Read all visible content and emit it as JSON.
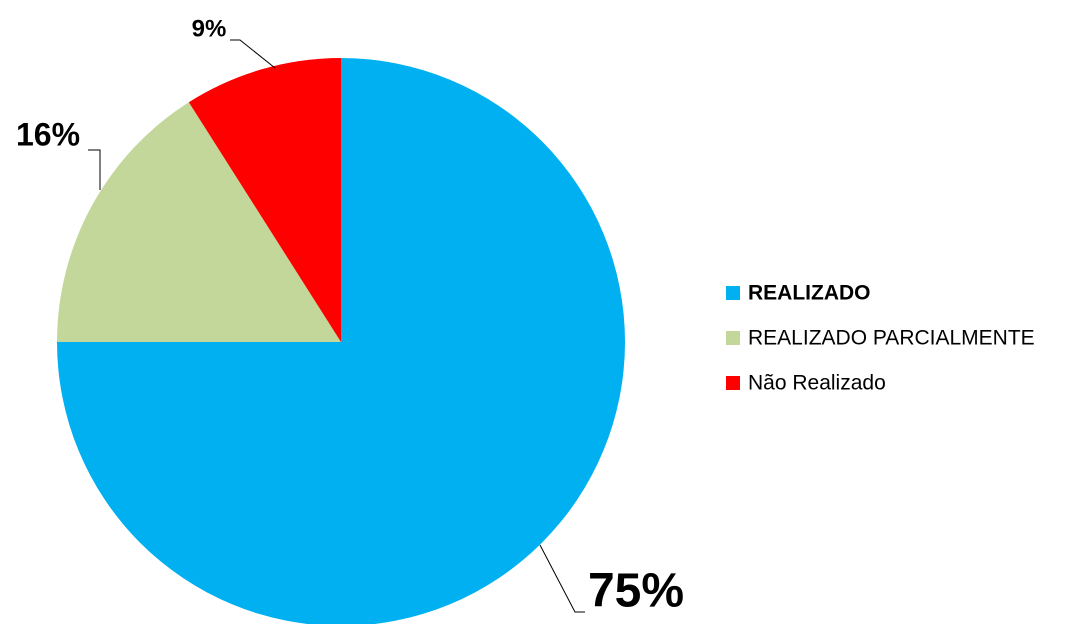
{
  "chart_data": {
    "type": "pie",
    "categories": [
      "REALIZADO",
      "REALIZADO PARCIALMENTE",
      "Não Realizado"
    ],
    "values": [
      75,
      16,
      9
    ],
    "value_labels": [
      "75%",
      "16%",
      "9%"
    ],
    "colors": [
      "#00b0f0",
      "#c4d79b",
      "#ff0000"
    ],
    "legend": "right"
  }
}
